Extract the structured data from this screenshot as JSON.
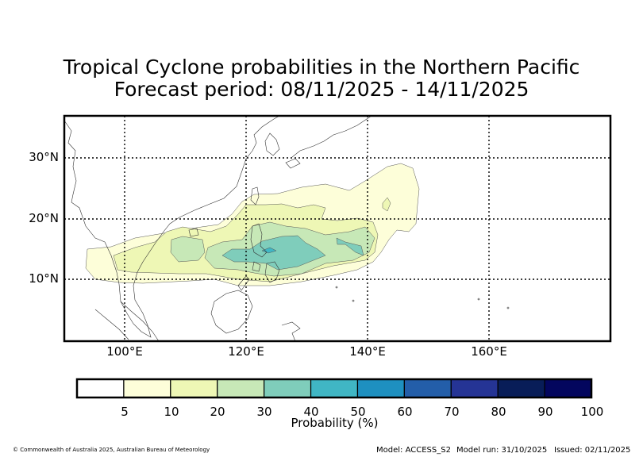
{
  "title_line1": "Tropical Cyclone probabilities in the Northern Pacific",
  "title_line2": "Forecast period: 08/11/2025 - 14/11/2025",
  "lat_labels": [
    "30°N",
    "20°N",
    "10°N"
  ],
  "lon_labels": [
    "100°E",
    "120°E",
    "140°E",
    "160°E"
  ],
  "colorbar": {
    "label": "Probability (%)",
    "ticks": [
      "5",
      "10",
      "20",
      "30",
      "40",
      "50",
      "60",
      "70",
      "80",
      "90",
      "100"
    ],
    "colors": [
      "#ffffff",
      "#fdfed9",
      "#eef7b5",
      "#c7e8b7",
      "#7fcdbb",
      "#40b6c4",
      "#1e90c0",
      "#235ea9",
      "#253495",
      "#081d58",
      "#03065e"
    ]
  },
  "footer": {
    "copyright": "© Commonwealth of Australia 2025, Australian Bureau of Meteorology",
    "model": "Model: ACCESS_S2",
    "model_run": "Model run: 31/10/2025",
    "issued": "Issued: 02/11/2025"
  }
}
